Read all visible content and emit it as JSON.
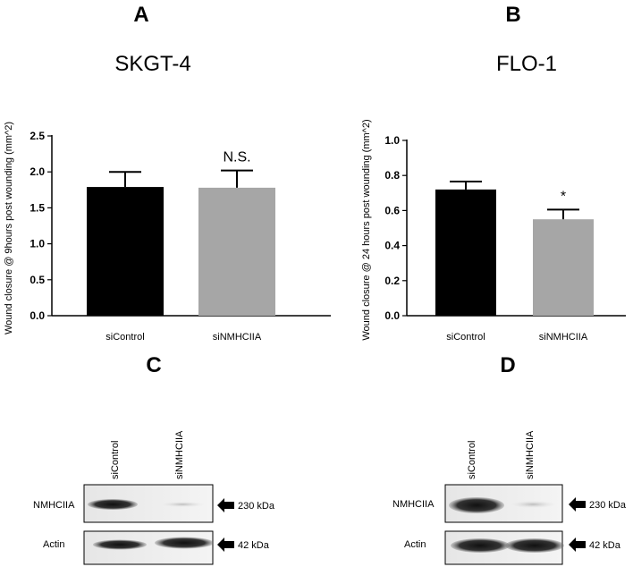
{
  "chart_data": [
    {
      "panel": "A",
      "type": "bar",
      "title": "SKGT-4",
      "ylabel": "Wound closure @ 9hours post wounding (mm^2)",
      "xlabel": "",
      "categories": [
        "siControl",
        "siNMHCIIA"
      ],
      "values": [
        1.79,
        1.78
      ],
      "errors": [
        0.21,
        0.24
      ],
      "bar_colors": [
        "#000000",
        "#a6a6a6"
      ],
      "ylim": [
        0,
        2.5
      ],
      "yticks": [
        "0.0",
        "0.5",
        "1.0",
        "1.5",
        "2.0",
        "2.5"
      ],
      "annotations": [
        "",
        "N.S."
      ]
    },
    {
      "panel": "B",
      "type": "bar",
      "title": "FLO-1",
      "ylabel": "Wound closure @ 24 hours post wounding (mm^2)",
      "xlabel": "",
      "categories": [
        "siControl",
        "siNMHCIIA"
      ],
      "values": [
        0.72,
        0.55
      ],
      "errors": [
        0.045,
        0.055
      ],
      "bar_colors": [
        "#000000",
        "#a6a6a6"
      ],
      "ylim": [
        0,
        1.0
      ],
      "yticks": [
        "0.0",
        "0.2",
        "0.4",
        "0.6",
        "0.8",
        "1.0"
      ],
      "annotations": [
        "",
        "*"
      ]
    }
  ],
  "blots": [
    {
      "panel": "C",
      "lanes": [
        "siControl",
        "siNMHCIIA"
      ],
      "rows": [
        {
          "label": "NMHCIIA",
          "size": "230 kDa"
        },
        {
          "label": "Actin",
          "size": "42 kDa"
        }
      ]
    },
    {
      "panel": "D",
      "lanes": [
        "siControl",
        "siNMHCIIA"
      ],
      "rows": [
        {
          "label": "NMHCIIA",
          "size": "230 kDa"
        },
        {
          "label": "Actin",
          "size": "42 kDa"
        }
      ]
    }
  ]
}
